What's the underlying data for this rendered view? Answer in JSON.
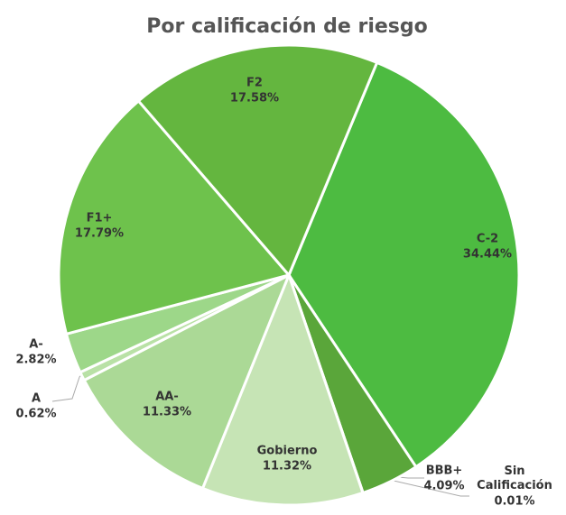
{
  "chart_data": {
    "type": "pie",
    "title": "Por calificación de riesgo",
    "categories": [
      "C-2",
      "BBB+",
      "Sin Calificación",
      "Gobierno",
      "AA-",
      "A",
      "A-",
      "F1+",
      "F2"
    ],
    "values": [
      34.44,
      4.09,
      0.01,
      11.32,
      11.33,
      0.62,
      2.82,
      17.79,
      17.58
    ],
    "value_labels": [
      "34.44%",
      "4.09%",
      "0.01%",
      "11.32%",
      "11.33%",
      "0.62%",
      "2.82%",
      "17.79%",
      "17.58%"
    ],
    "colors": [
      "#4dbb41",
      "#5aa63a",
      "#3f8f30",
      "#c6e4b5",
      "#abd996",
      "#b9e1a6",
      "#9dd789",
      "#6ec24c",
      "#64b63f"
    ]
  }
}
